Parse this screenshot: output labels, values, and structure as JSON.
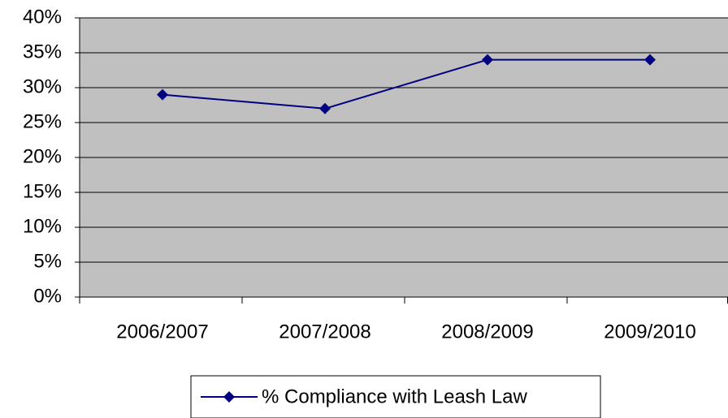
{
  "chart_data": {
    "type": "line",
    "categories": [
      "2006/2007",
      "2007/2008",
      "2008/2009",
      "2009/2010"
    ],
    "series": [
      {
        "name": "% Compliance with Leash Law",
        "color": "#000080",
        "values": [
          29,
          27,
          34,
          34
        ]
      }
    ],
    "ylim": [
      0,
      40
    ],
    "yticks": [
      {
        "value": 0,
        "label": "0%"
      },
      {
        "value": 5,
        "label": "5%"
      },
      {
        "value": 10,
        "label": "10%"
      },
      {
        "value": 15,
        "label": "15%"
      },
      {
        "value": 20,
        "label": "20%"
      },
      {
        "value": 25,
        "label": "25%"
      },
      {
        "value": 30,
        "label": "30%"
      },
      {
        "value": 35,
        "label": "35%"
      },
      {
        "value": 40,
        "label": "40%"
      }
    ],
    "grid": true,
    "legend": "bottom"
  }
}
